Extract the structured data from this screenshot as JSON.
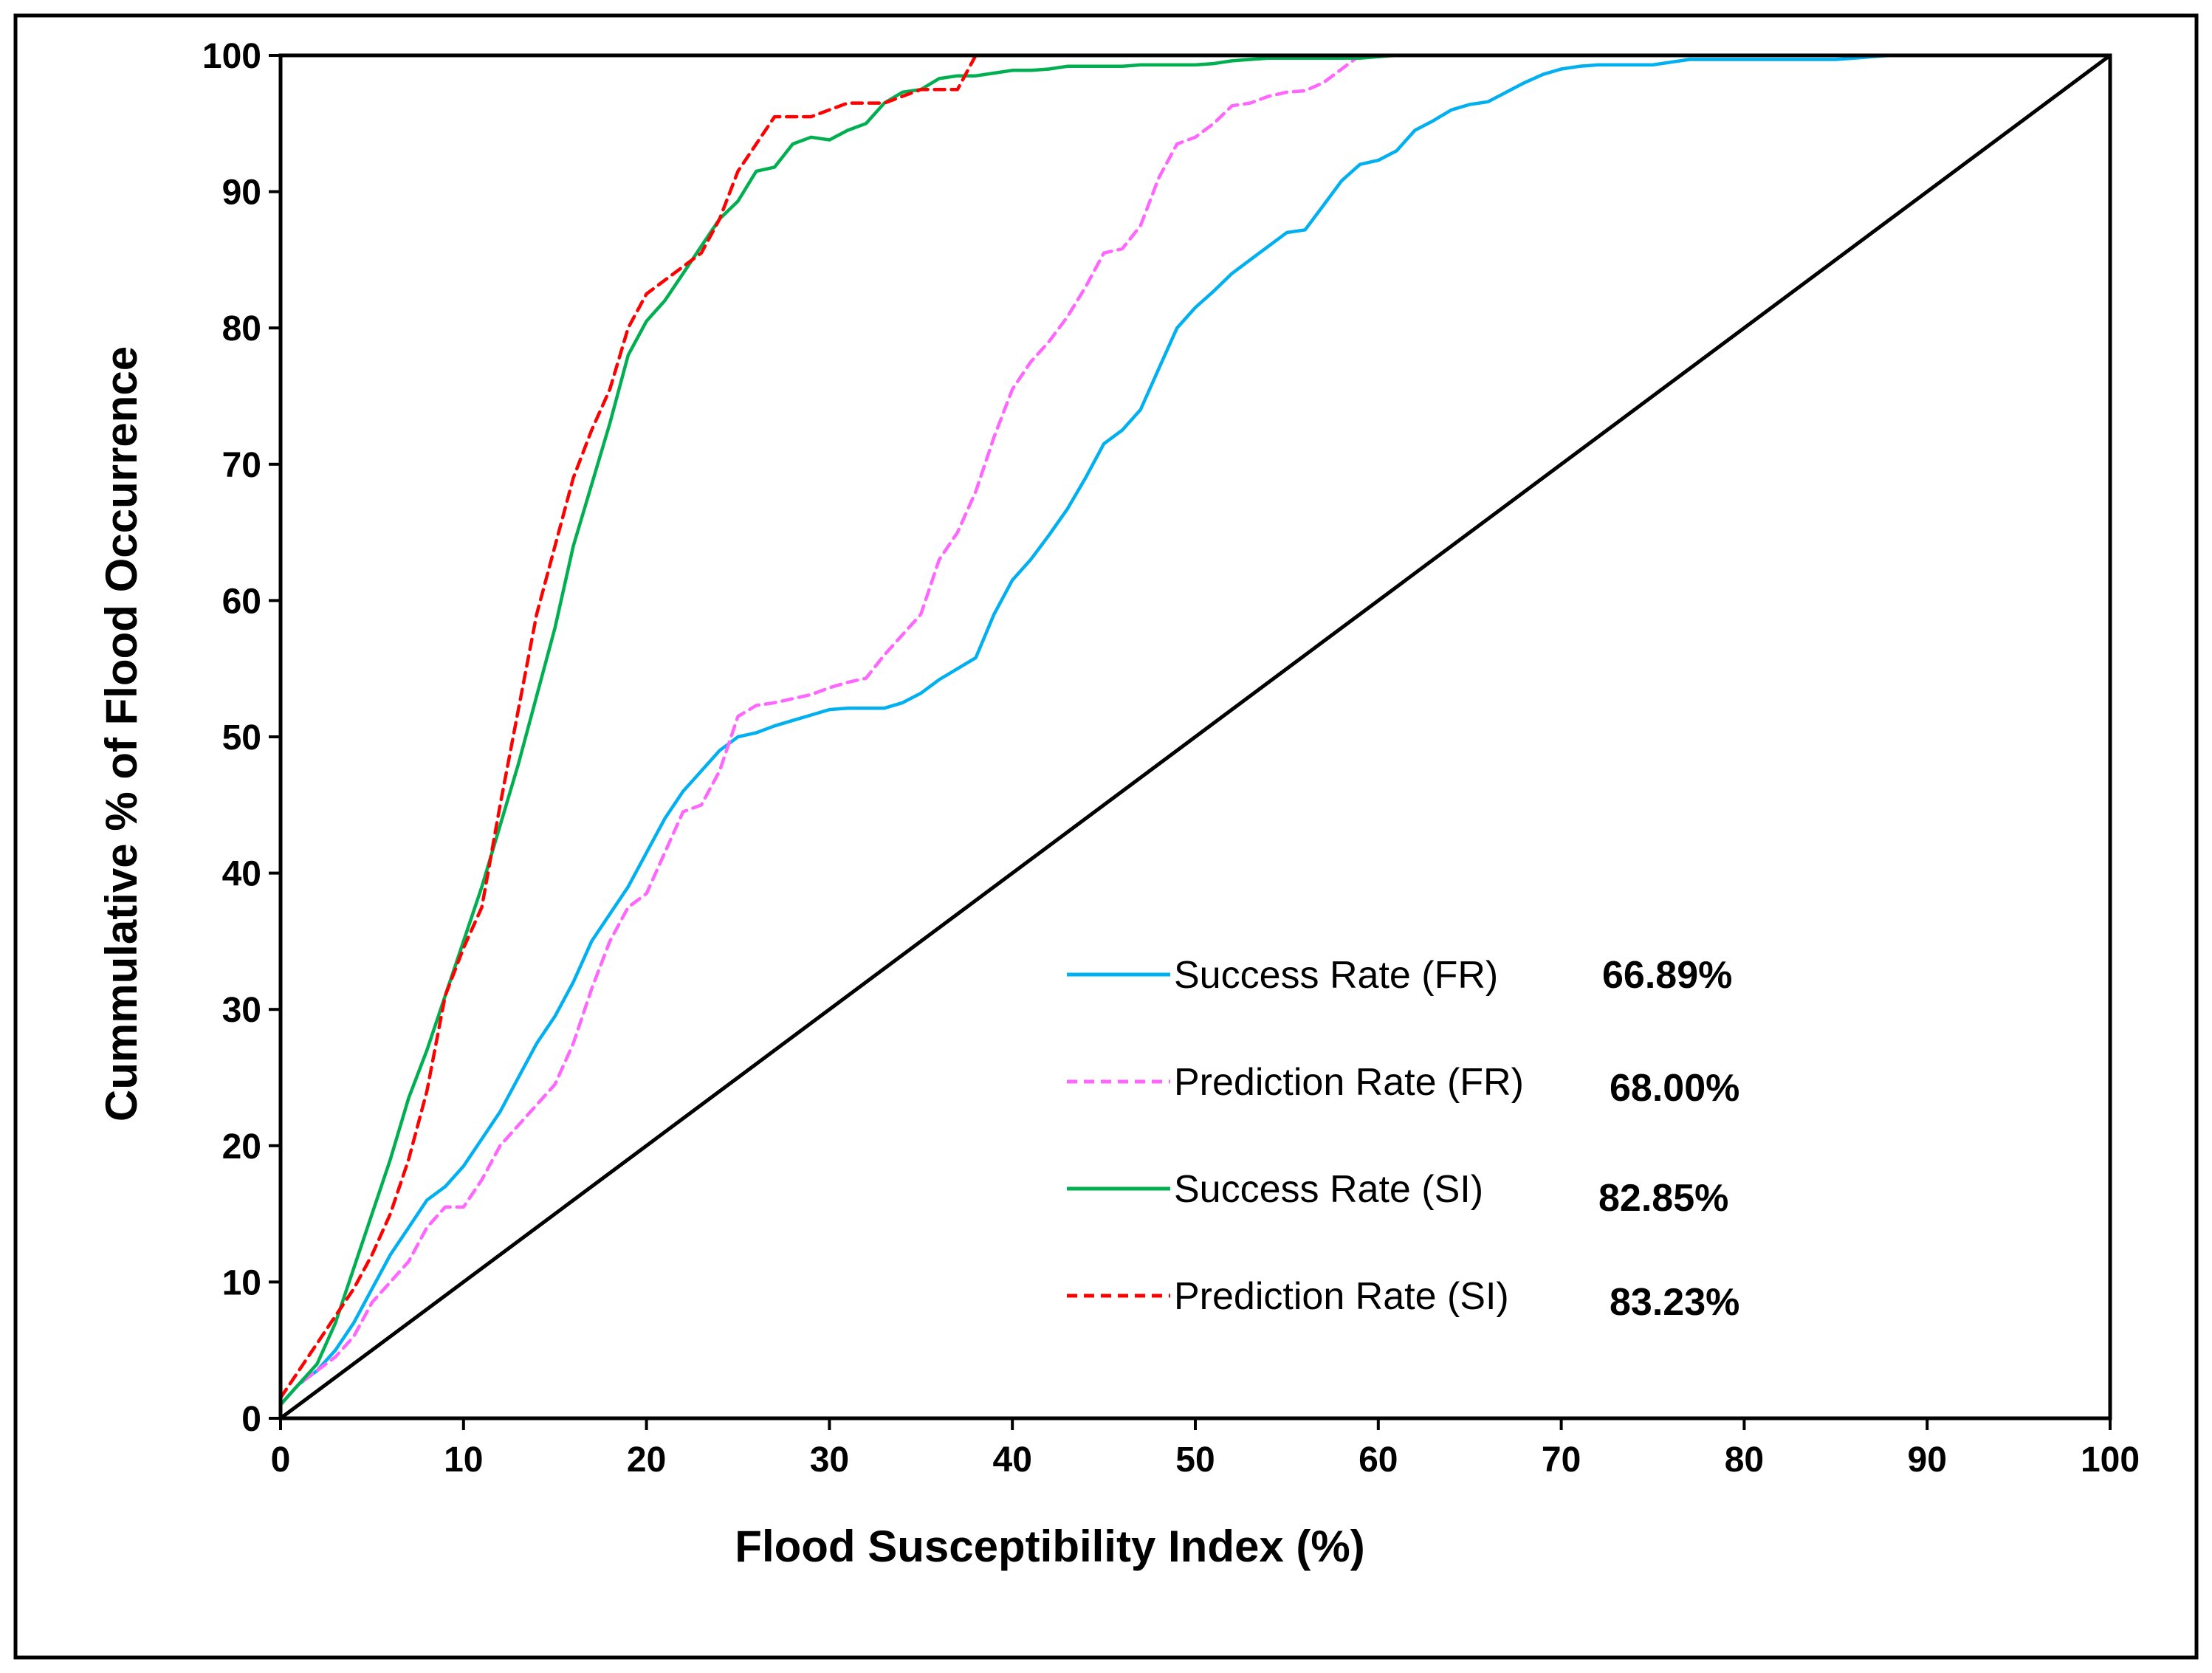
{
  "chart_data": {
    "type": "line",
    "xlabel": "Flood Susceptibility Index (%)",
    "ylabel": "Cummulative % of Flood Occurrence",
    "xlim": [
      0,
      100
    ],
    "ylim": [
      0,
      100
    ],
    "xticks": [
      "0",
      "10",
      "20",
      "30",
      "40",
      "50",
      "60",
      "70",
      "80",
      "90",
      "100"
    ],
    "yticks": [
      "0",
      "10",
      "20",
      "30",
      "40",
      "50",
      "60",
      "70",
      "80",
      "90",
      "100"
    ],
    "legend_position": "lower-right",
    "series": [
      {
        "name": "Success Rate (FR)",
        "value_label": "66.89%",
        "color": "#00b0f0",
        "dash": "solid",
        "x": [
          0,
          1,
          2,
          3,
          4,
          5,
          6,
          7,
          8,
          9,
          10,
          11,
          12,
          13,
          14,
          15,
          16,
          17,
          18,
          19,
          20,
          21,
          22,
          23,
          24,
          25,
          26,
          27,
          28,
          29,
          30,
          31,
          32,
          33,
          34,
          35,
          36,
          37,
          38,
          39,
          40,
          41,
          42,
          43,
          44,
          45,
          46,
          47,
          48,
          49,
          50,
          51,
          52,
          53,
          54,
          55,
          56,
          57,
          58,
          59,
          60,
          61,
          62,
          63,
          64,
          65,
          66,
          67,
          68,
          69,
          70,
          71,
          72,
          73,
          74,
          75,
          76,
          77,
          78,
          79,
          80,
          81,
          82,
          83,
          84,
          85,
          86,
          87,
          88,
          89,
          90,
          91,
          92,
          93,
          94,
          95,
          96,
          97,
          98,
          99,
          100
        ],
        "y": [
          1,
          2.5,
          3.5,
          5,
          7,
          9.5,
          12,
          14,
          16,
          17,
          18.5,
          20.5,
          22.5,
          25,
          27.5,
          29.5,
          32,
          35,
          37,
          39,
          41.5,
          44,
          46,
          47.5,
          49,
          50,
          50.3,
          50.8,
          51.2,
          51.6,
          52,
          52.1,
          52.1,
          52.1,
          52.5,
          53.2,
          54.2,
          55,
          55.8,
          59,
          61.5,
          63,
          64.8,
          66.7,
          69,
          71.5,
          72.5,
          74,
          77,
          80,
          81.5,
          82.7,
          84,
          85,
          86,
          87,
          87.2,
          89,
          90.8,
          92,
          92.3,
          93,
          94.5,
          95.2,
          96,
          96.4,
          96.6,
          97.3,
          98,
          98.6,
          99,
          99.2,
          99.3,
          99.3,
          99.3,
          99.3,
          99.5,
          99.7,
          99.7,
          99.7,
          99.7,
          99.7,
          99.7,
          99.7,
          99.7,
          99.7,
          99.8,
          99.9,
          100,
          100,
          100,
          100,
          100,
          100,
          100,
          100,
          100,
          100,
          100,
          100,
          100
        ]
      },
      {
        "name": "Prediction Rate (FR)",
        "value_label": "68.00%",
        "color": "#ff66ff",
        "dash": "dashed",
        "x": [
          0,
          1,
          2,
          3,
          4,
          5,
          6,
          7,
          8,
          9,
          10,
          11,
          12,
          13,
          14,
          15,
          16,
          17,
          18,
          19,
          20,
          21,
          22,
          23,
          24,
          25,
          26,
          27,
          28,
          29,
          30,
          31,
          32,
          33,
          34,
          35,
          36,
          37,
          38,
          39,
          40,
          41,
          42,
          43,
          44,
          45,
          46,
          47,
          48,
          49,
          50,
          51,
          52,
          53,
          54,
          55,
          56,
          57,
          58,
          59,
          60,
          61,
          62,
          63,
          64,
          65,
          66,
          67,
          68,
          69,
          70,
          71,
          72,
          73,
          74,
          75,
          76,
          77,
          78,
          79,
          80,
          81,
          82,
          83,
          84,
          85,
          86,
          87,
          88,
          89,
          90,
          91,
          92,
          93,
          94,
          95,
          96,
          97,
          98,
          99,
          100
        ],
        "y": [
          1,
          2.5,
          3.5,
          4.5,
          6,
          8.5,
          10,
          11.5,
          14,
          15.5,
          15.5,
          17.5,
          20,
          21.5,
          23,
          24.5,
          27.5,
          31.5,
          35,
          37.5,
          38.5,
          41.5,
          44.5,
          45,
          47.5,
          51.5,
          52.3,
          52.5,
          52.8,
          53.1,
          53.6,
          54,
          54.3,
          56,
          57.5,
          59,
          63,
          65,
          68,
          72,
          75.5,
          77.5,
          79,
          80.8,
          83,
          85.5,
          85.8,
          87.5,
          91,
          93.5,
          94,
          95,
          96.3,
          96.5,
          97,
          97.3,
          97.4,
          98,
          99,
          100,
          100,
          100,
          100,
          100,
          100,
          100,
          100,
          100,
          100,
          100,
          100,
          100,
          100,
          100,
          100,
          100,
          100,
          100,
          100,
          100,
          100,
          100,
          100,
          100,
          100,
          100,
          100,
          100,
          100,
          100,
          100,
          100,
          100,
          100,
          100,
          100,
          100,
          100,
          100,
          100,
          100
        ]
      },
      {
        "name": "Success Rate (SI)",
        "value_label": "82.85%",
        "color": "#00b050",
        "dash": "solid",
        "x": [
          0,
          1,
          2,
          3,
          4,
          5,
          6,
          7,
          8,
          9,
          10,
          11,
          12,
          13,
          14,
          15,
          16,
          17,
          18,
          19,
          20,
          21,
          22,
          23,
          24,
          25,
          26,
          27,
          28,
          29,
          30,
          31,
          32,
          33,
          34,
          35,
          36,
          37,
          38,
          39,
          40,
          41,
          42,
          43,
          44,
          45,
          46,
          47,
          48,
          49,
          50,
          51,
          52,
          53,
          54,
          55,
          56,
          57,
          58,
          59,
          60,
          61,
          62,
          63,
          64,
          65,
          66,
          67,
          68,
          69,
          70,
          71,
          72,
          73,
          74,
          75,
          76,
          77,
          78,
          79,
          80,
          81,
          82,
          83,
          84,
          85,
          86,
          87,
          88,
          89,
          90,
          91,
          92,
          93,
          94,
          95,
          96,
          97,
          98,
          99,
          100
        ],
        "y": [
          1,
          2.5,
          4,
          7,
          11,
          15,
          19,
          23.5,
          27,
          31,
          35,
          39,
          43.5,
          48,
          53,
          58,
          64,
          68.5,
          73,
          78,
          80.5,
          82,
          84,
          86,
          88,
          89.3,
          91.5,
          91.8,
          93.5,
          94,
          93.8,
          94.5,
          95,
          96.5,
          97.3,
          97.5,
          98.3,
          98.5,
          98.5,
          98.7,
          98.9,
          98.9,
          99,
          99.2,
          99.2,
          99.2,
          99.2,
          99.3,
          99.3,
          99.3,
          99.3,
          99.4,
          99.6,
          99.7,
          99.8,
          99.8,
          99.8,
          99.8,
          99.8,
          99.8,
          99.9,
          100,
          100,
          100,
          100,
          100,
          100,
          100,
          100,
          100,
          100,
          100,
          100,
          100,
          100,
          100,
          100,
          100,
          100,
          100,
          100,
          100,
          100,
          100,
          100,
          100,
          100,
          100,
          100,
          100,
          100,
          100,
          100,
          100,
          100,
          100,
          100,
          100,
          100,
          100,
          100
        ]
      },
      {
        "name": "Prediction Rate (SI)",
        "value_label": "83.23%",
        "color": "#ff0000",
        "dash": "dashed",
        "x": [
          0,
          1,
          2,
          3,
          4,
          5,
          6,
          7,
          8,
          9,
          10,
          11,
          12,
          13,
          14,
          15,
          16,
          17,
          18,
          19,
          20,
          21,
          22,
          23,
          24,
          25,
          26,
          27,
          28,
          29,
          30,
          31,
          32,
          33,
          34,
          35,
          36,
          37,
          38,
          39,
          40,
          41,
          42,
          43,
          44,
          45,
          46,
          47,
          48,
          49,
          50,
          51,
          52,
          53,
          54,
          55,
          56,
          57,
          58,
          59,
          60,
          61,
          62,
          63,
          64,
          65,
          66,
          67,
          68,
          69,
          70,
          71,
          72,
          73,
          74,
          75,
          76,
          77,
          78,
          79,
          80,
          81,
          82,
          83,
          84,
          85,
          86,
          87,
          88,
          89,
          90,
          91,
          92,
          93,
          94,
          95,
          96,
          97,
          98,
          99,
          100
        ],
        "y": [
          1.5,
          3.5,
          5.5,
          7.5,
          9.5,
          12,
          15,
          19,
          24,
          31,
          34.5,
          37.5,
          45,
          52,
          59,
          64,
          69,
          72.5,
          75.5,
          80,
          82.5,
          83.5,
          84.5,
          85.5,
          88,
          91.5,
          93.5,
          95.5,
          95.5,
          95.5,
          96,
          96.5,
          96.5,
          96.5,
          97,
          97.5,
          97.5,
          97.5,
          100,
          100,
          100,
          100,
          100,
          100,
          100,
          100,
          100,
          100,
          100,
          100,
          100,
          100,
          100,
          100,
          100,
          100,
          100,
          100,
          100,
          100,
          100,
          100,
          100,
          100,
          100,
          100,
          100,
          100,
          100,
          100,
          100,
          100,
          100,
          100,
          100,
          100,
          100,
          100,
          100,
          100,
          100,
          100,
          100,
          100,
          100,
          100,
          100,
          100,
          100,
          100,
          100,
          100,
          100,
          100,
          100,
          100,
          100,
          100,
          100,
          100,
          100
        ]
      },
      {
        "name": "",
        "color": "#000000",
        "dash": "solid",
        "reference": true,
        "x": [
          0,
          100
        ],
        "y": [
          0,
          100
        ]
      }
    ]
  }
}
